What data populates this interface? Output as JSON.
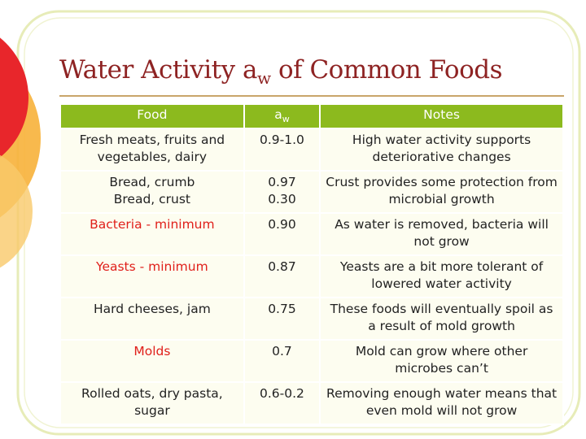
{
  "header": {
    "title": {
      "text": "Water Activity a",
      "subscript": "w",
      "rest": "of Common Foods"
    }
  },
  "table": {
    "header_color": "#8cba1e",
    "columns": [
      {
        "text": "Food"
      },
      {
        "text": "a",
        "subscript": "w"
      },
      {
        "text": "Notes"
      }
    ],
    "rows": [
      {
        "food": "Fresh meats, fruits and vegetables, dairy",
        "aw": "0.9-1.0",
        "notes": "High water activity supports deteriorative changes"
      },
      {
        "food": [
          "Bread, crumb",
          "Bread, crust"
        ],
        "aw": [
          "0.97",
          "0.30"
        ],
        "notes": "Crust provides some protection from microbial growth"
      },
      {
        "food": "Bacteria - minimum",
        "aw": "0.90",
        "notes": "As water is removed, bacteria will not grow",
        "color": "#e0201b"
      },
      {
        "food": "Yeasts - minimum",
        "aw": "0.87",
        "notes": "Yeasts are a bit more tolerant of lowered water activity",
        "color": "#e0201b"
      },
      {
        "food": "Hard cheeses, jam",
        "aw": "0.75",
        "notes": "These foods will eventually spoil as a result of mold growth"
      },
      {
        "food": "Molds",
        "aw": "0.7",
        "notes": "Mold can grow where other microbes can’t",
        "color": "#e0201b"
      },
      {
        "food": "Rolled oats, dry pasta, sugar",
        "aw": "0.6-0.2",
        "notes": "Removing enough water means that even mold will not grow"
      }
    ]
  }
}
